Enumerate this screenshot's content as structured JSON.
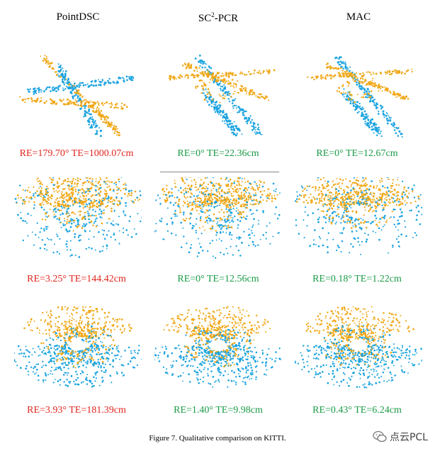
{
  "headers": [
    "PointDSC",
    "SC",
    "2",
    "-PCR",
    "MAC"
  ],
  "rows": [
    [
      {
        "label": "RE=179.70° TE=1000.07cm",
        "status": "bad"
      },
      {
        "label": "RE=0° TE=22.36cm",
        "status": "good"
      },
      {
        "label": "RE=0° TE=12.67cm",
        "status": "good"
      }
    ],
    [
      {
        "label": "RE=3.25° TE=144.42cm",
        "status": "bad"
      },
      {
        "label": "RE=0° TE=12.56cm",
        "status": "good"
      },
      {
        "label": "RE=0.18° TE=1.22cm",
        "status": "good"
      }
    ],
    [
      {
        "label": "RE=3.93° TE=181.39cm",
        "status": "bad"
      },
      {
        "label": "RE=1.40° TE=9.98cm",
        "status": "good"
      },
      {
        "label": "RE=0.43° TE=6.24cm",
        "status": "good"
      }
    ]
  ],
  "caption": "Figure 7. Qualitative comparison on KITTI.",
  "watermark": "点云PCL",
  "colors": {
    "source": "#f0a818",
    "target": "#1aa3e0",
    "bad": "#e0251d",
    "good": "#1a9b48"
  }
}
